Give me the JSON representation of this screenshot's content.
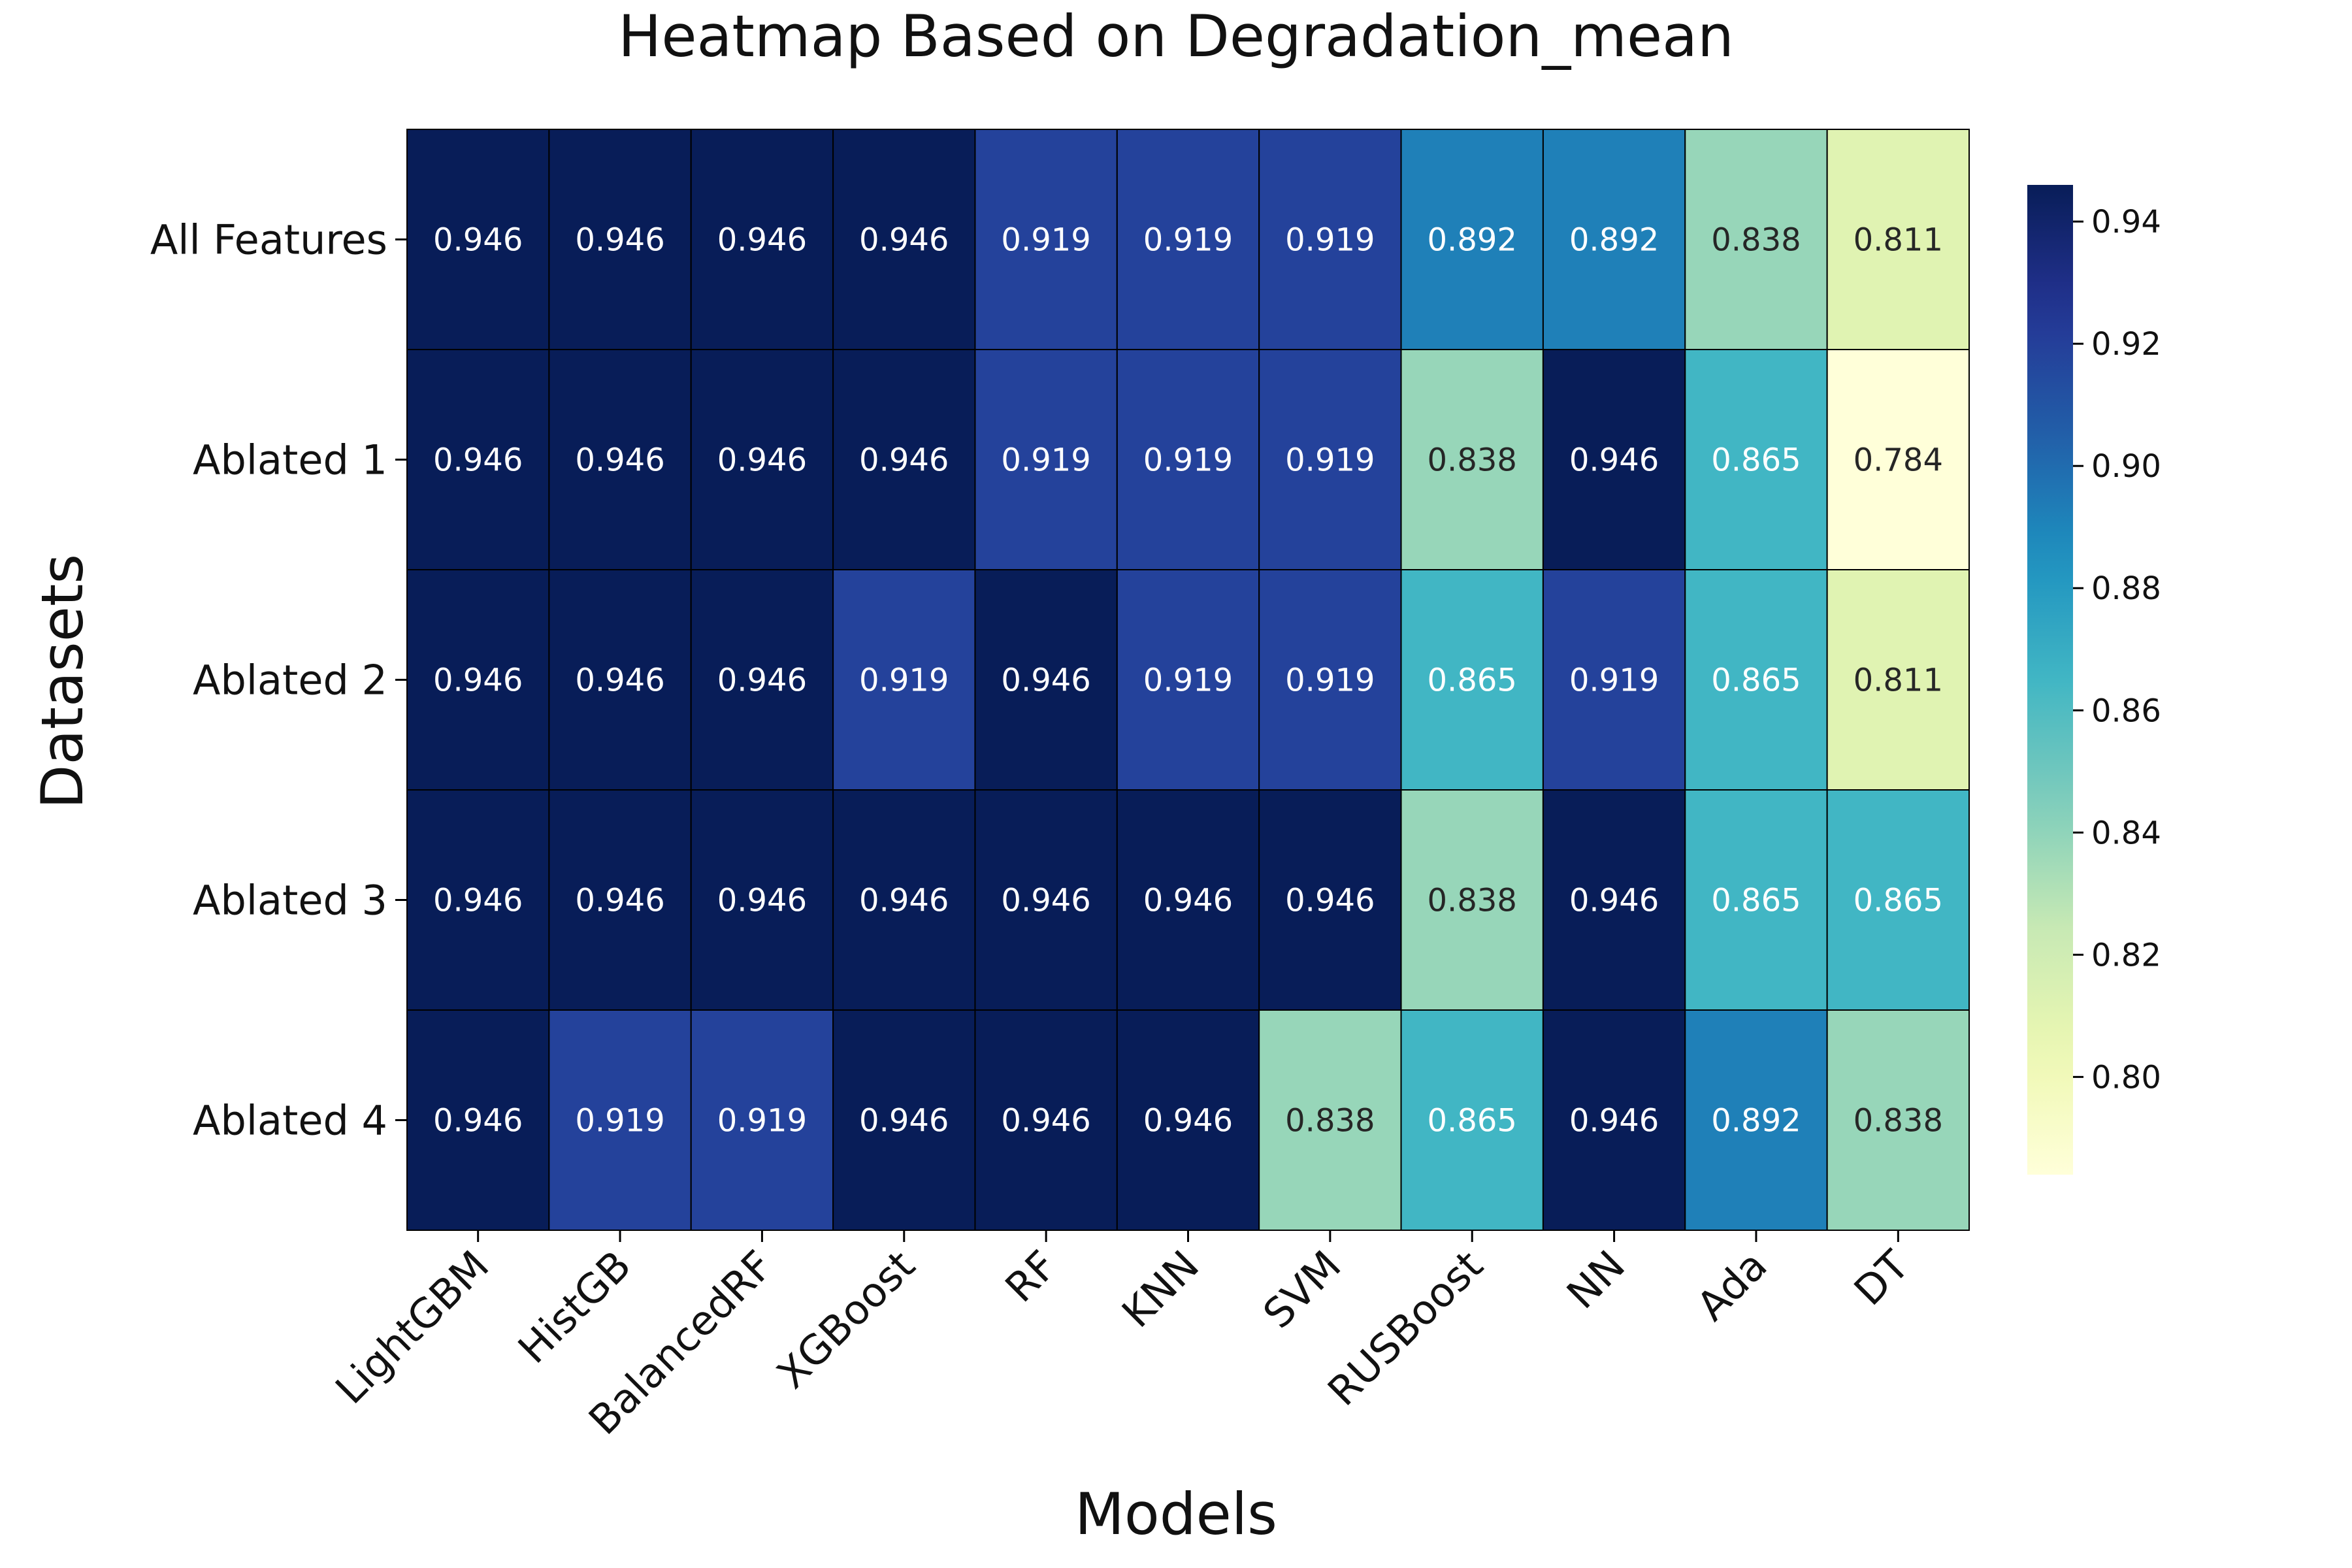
{
  "chart_data": {
    "type": "heatmap",
    "title": "Heatmap Based on Degradation_mean",
    "xlabel": "Models",
    "ylabel": "Datasets",
    "x_categories": [
      "LightGBM",
      "HistGB",
      "BalancedRF",
      "XGBoost",
      "RF",
      "KNN",
      "SVM",
      "RUSBoost",
      "NN",
      "Ada",
      "DT"
    ],
    "y_categories": [
      "All Features",
      "Ablated 1",
      "Ablated 2",
      "Ablated 3",
      "Ablated 4"
    ],
    "values": [
      [
        0.946,
        0.946,
        0.946,
        0.946,
        0.919,
        0.919,
        0.919,
        0.892,
        0.892,
        0.838,
        0.811
      ],
      [
        0.946,
        0.946,
        0.946,
        0.946,
        0.919,
        0.919,
        0.919,
        0.838,
        0.946,
        0.865,
        0.784
      ],
      [
        0.946,
        0.946,
        0.946,
        0.919,
        0.946,
        0.919,
        0.919,
        0.865,
        0.919,
        0.865,
        0.811
      ],
      [
        0.946,
        0.946,
        0.946,
        0.946,
        0.946,
        0.946,
        0.946,
        0.838,
        0.946,
        0.865,
        0.865
      ],
      [
        0.946,
        0.919,
        0.919,
        0.946,
        0.946,
        0.946,
        0.838,
        0.865,
        0.946,
        0.892,
        0.838
      ]
    ],
    "colormap": "YlGnBu",
    "value_range": [
      0.784,
      0.946
    ],
    "colorbar_ticks": [
      "0.80",
      "0.82",
      "0.84",
      "0.86",
      "0.88",
      "0.90",
      "0.92",
      "0.94"
    ],
    "annotations": true,
    "legend_position": "right"
  }
}
